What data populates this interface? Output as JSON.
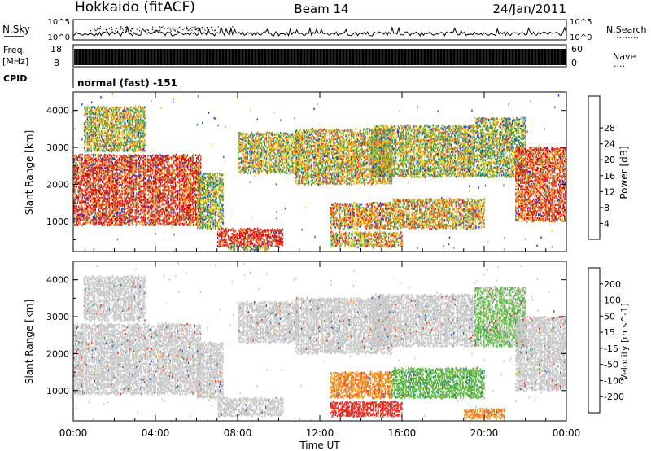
{
  "header": {
    "station": "Hokkaido (fitACF)",
    "beam": "Beam 14",
    "date": "24/Jan/2011"
  },
  "noise_panel": {
    "left_label": "N.Sky",
    "left_ticks": [
      "10^5",
      "10^0"
    ],
    "right_ticks": [
      "10^5",
      "10^0"
    ],
    "right_label": "N.Search",
    "right_dots": "........"
  },
  "freq_panel": {
    "left_label_1": "Freq.",
    "left_label_2": "[MHz]",
    "left_ticks": [
      "18",
      "8"
    ],
    "right_ticks": [
      "60",
      "0"
    ],
    "right_label": "Nave",
    "right_dots": "...."
  },
  "cpid": {
    "label": "CPID",
    "mode": "normal (fast) -151"
  },
  "chart_data": [
    {
      "type": "heatmap",
      "title": "",
      "ylabel": "Slant Range [km]",
      "xlabel": "",
      "ylim": [
        180,
        4500
      ],
      "yticks": [
        "1000",
        "2000",
        "3000",
        "4000"
      ],
      "colorbar": {
        "label": "Power [dB]",
        "ticks": [
          "4",
          "8",
          "12",
          "16",
          "20",
          "24",
          "28"
        ],
        "colors": [
          "#1a2cff",
          "#2a5cb0",
          "#2d8a6a",
          "#5dbb3f",
          "#e8d817",
          "#f7a21c",
          "#f46a17",
          "#e8281d",
          "#d40c0c"
        ]
      },
      "regions": [
        {
          "t0": 0.0,
          "t1": 6.2,
          "r0": 900,
          "r1": 2800,
          "level": 0.85
        },
        {
          "t0": 0.5,
          "t1": 3.5,
          "r0": 2900,
          "r1": 4100,
          "level": 0.5
        },
        {
          "t0": 6.0,
          "t1": 7.3,
          "r0": 800,
          "r1": 2300,
          "level": 0.45
        },
        {
          "t0": 7.0,
          "t1": 10.2,
          "r0": 300,
          "r1": 800,
          "level": 0.9
        },
        {
          "t0": 7.5,
          "t1": 9.5,
          "r0": 200,
          "r1": 350,
          "level": 0.4
        },
        {
          "t0": 8.0,
          "t1": 11.0,
          "r0": 2300,
          "r1": 3400,
          "level": 0.5
        },
        {
          "t0": 10.8,
          "t1": 15.5,
          "r0": 2000,
          "r1": 3500,
          "level": 0.55
        },
        {
          "t0": 12.5,
          "t1": 15.5,
          "r0": 800,
          "r1": 1500,
          "level": 0.65
        },
        {
          "t0": 12.5,
          "t1": 16.0,
          "r0": 300,
          "r1": 700,
          "level": 0.6
        },
        {
          "t0": 14.5,
          "t1": 19.5,
          "r0": 2200,
          "r1": 3600,
          "level": 0.5
        },
        {
          "t0": 15.5,
          "t1": 20.0,
          "r0": 800,
          "r1": 1600,
          "level": 0.6
        },
        {
          "t0": 19.5,
          "t1": 22.0,
          "r0": 2200,
          "r1": 3800,
          "level": 0.45
        },
        {
          "t0": 21.5,
          "t1": 24.0,
          "r0": 1000,
          "r1": 3000,
          "level": 0.8
        }
      ]
    },
    {
      "type": "heatmap",
      "title": "",
      "ylabel": "Slant Range [km]",
      "xlabel": "Time UT",
      "ylim": [
        180,
        4500
      ],
      "yticks": [
        "1000",
        "2000",
        "3000",
        "4000"
      ],
      "xticks": [
        "00:00",
        "04:00",
        "08:00",
        "12:00",
        "16:00",
        "20:00",
        "00:00"
      ],
      "xlim": [
        0,
        24
      ],
      "colorbar": {
        "label": "Velocity [m s^-1]",
        "ticks": [
          "200",
          "100",
          "50",
          "15",
          "-15",
          "-50",
          "-100",
          "-200"
        ],
        "colors": [
          "#1f3bd6",
          "#2a5cb0",
          "#2d8a6a",
          "#5dbb3f",
          "#c8c8c8",
          "#f7a21c",
          "#f46a17",
          "#e8281d",
          "#d40c0c"
        ]
      },
      "regions": [
        {
          "t0": 0.0,
          "t1": 6.2,
          "r0": 900,
          "r1": 2800,
          "v": 0
        },
        {
          "t0": 0.5,
          "t1": 3.5,
          "r0": 2900,
          "r1": 4100,
          "v": 0
        },
        {
          "t0": 6.0,
          "t1": 7.3,
          "r0": 800,
          "r1": 2300,
          "v": 0
        },
        {
          "t0": 7.0,
          "t1": 10.2,
          "r0": 300,
          "r1": 800,
          "v": 0
        },
        {
          "t0": 8.0,
          "t1": 11.0,
          "r0": 2300,
          "r1": 3400,
          "v": 0
        },
        {
          "t0": 10.8,
          "t1": 15.5,
          "r0": 2000,
          "r1": 3500,
          "v": 0
        },
        {
          "t0": 12.5,
          "t1": 15.5,
          "r0": 800,
          "r1": 1500,
          "v": -50
        },
        {
          "t0": 12.5,
          "t1": 16.0,
          "r0": 300,
          "r1": 700,
          "v": -150
        },
        {
          "t0": 14.5,
          "t1": 19.5,
          "r0": 2200,
          "r1": 3600,
          "v": 0
        },
        {
          "t0": 15.5,
          "t1": 20.0,
          "r0": 800,
          "r1": 1600,
          "v": 40
        },
        {
          "t0": 19.5,
          "t1": 22.0,
          "r0": 2200,
          "r1": 3800,
          "v": 20
        },
        {
          "t0": 21.5,
          "t1": 24.0,
          "r0": 1000,
          "r1": 3000,
          "v": 0
        },
        {
          "t0": 19.0,
          "t1": 21.0,
          "r0": 250,
          "r1": 500,
          "v": -50
        }
      ]
    }
  ]
}
